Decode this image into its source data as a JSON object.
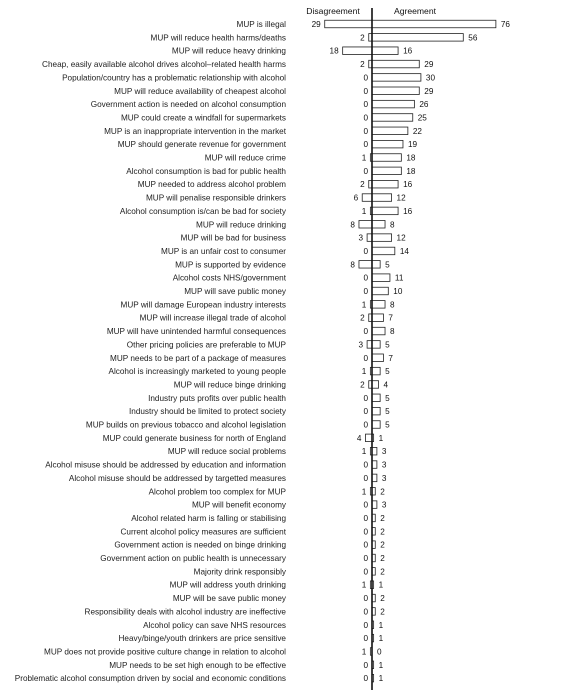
{
  "chart_data": {
    "type": "bar",
    "orientation": "horizontal-diverging",
    "headers": {
      "left": "Disagreement",
      "right": "Agreement"
    },
    "categories": [
      "MUP is illegal",
      "MUP will reduce health harms/deaths",
      "MUP will reduce heavy drinking",
      "Cheap, easily available alcohol drives alcohol–related health harms",
      "Population/country has a problematic relationship with alcohol",
      "MUP will reduce availability of cheapest alcohol",
      "Government action is needed on alcohol consumption",
      "MUP could create a windfall for supermarkets",
      "MUP is an inappropriate intervention in the market",
      "MUP should generate revenue for government",
      "MUP will reduce crime",
      "Alcohol consumption is bad for public health",
      "MUP needed to address alcohol problem",
      "MUP will penalise responsible drinkers",
      "Alcohol consumption is/can be bad for society",
      "MUP will reduce drinking",
      "MUP will be bad for business",
      "MUP is an unfair cost to consumer",
      "MUP is supported by evidence",
      "Alcohol costs NHS/government",
      "MUP will save public money",
      "MUP will damage European industry interests",
      "MUP will increase illegal trade of alcohol",
      "MUP will have unintended harmful consequences",
      "Other pricing policies are preferable to MUP",
      "MUP needs to be part of a package of measures",
      "Alcohol is increasingly marketed to young people",
      "MUP will reduce binge drinking",
      "Industry puts profits over public health",
      "Industry should be limited to protect society",
      "MUP builds on previous tobacco and alcohol legislation",
      "MUP could generate business for north of England",
      "MUP will reduce social problems",
      "Alcohol misuse should be addressed by education and information",
      "Alcohol misuse should be addressed by targetted measures",
      "Alcohol problem too complex for MUP",
      "MUP will benefit economy",
      "Alcohol related harm is falling or stabilising",
      "Current alcohol policy measures are sufficient",
      "Government action is needed on binge drinking",
      "Government action on public health is unnecessary",
      "Majority drink responsibly",
      "MUP will address youth drinking",
      "MUP will be save public money",
      "Responsibility deals with alcohol industry are ineffective",
      "Alcohol policy can save NHS resources",
      "Heavy/binge/youth drinkers are price sensitive",
      "MUP does not provide positive culture change in relation to alcohol",
      "MUP needs to be set high enough to be effective",
      "Problematic alcohol consumption driven by social and economic conditions"
    ],
    "series": [
      {
        "name": "Disagreement",
        "values": [
          29,
          2,
          18,
          2,
          0,
          0,
          0,
          0,
          0,
          0,
          1,
          0,
          2,
          6,
          1,
          8,
          3,
          0,
          8,
          0,
          0,
          1,
          2,
          0,
          3,
          0,
          1,
          2,
          0,
          0,
          0,
          4,
          1,
          0,
          0,
          1,
          0,
          0,
          0,
          0,
          0,
          0,
          1,
          0,
          0,
          0,
          0,
          1,
          0,
          0
        ]
      },
      {
        "name": "Agreement",
        "values": [
          76,
          56,
          16,
          29,
          30,
          29,
          26,
          25,
          22,
          19,
          18,
          18,
          16,
          12,
          16,
          8,
          12,
          14,
          5,
          11,
          10,
          8,
          7,
          8,
          5,
          7,
          5,
          4,
          5,
          5,
          5,
          1,
          3,
          3,
          3,
          2,
          3,
          2,
          2,
          2,
          2,
          2,
          1,
          2,
          2,
          1,
          1,
          0,
          1,
          1
        ]
      }
    ],
    "xlim": [
      -29,
      76
    ]
  }
}
